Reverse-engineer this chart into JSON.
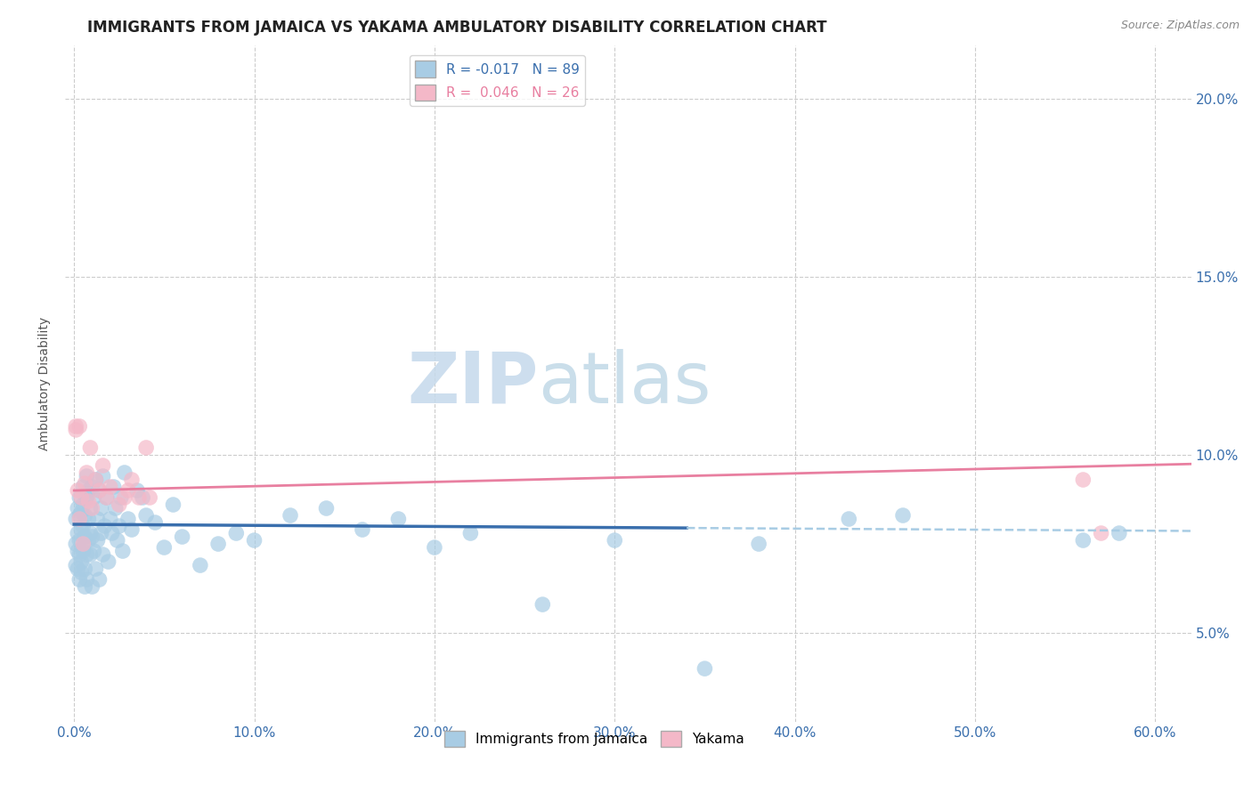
{
  "title": "IMMIGRANTS FROM JAMAICA VS YAKAMA AMBULATORY DISABILITY CORRELATION CHART",
  "source": "Source: ZipAtlas.com",
  "ylabel": "Ambulatory Disability",
  "xlim": [
    -0.005,
    0.62
  ],
  "ylim": [
    0.025,
    0.215
  ],
  "xticks": [
    0.0,
    0.1,
    0.2,
    0.3,
    0.4,
    0.5,
    0.6
  ],
  "yticks": [
    0.05,
    0.1,
    0.15,
    0.2
  ],
  "ytick_labels": [
    "5.0%",
    "10.0%",
    "15.0%",
    "20.0%"
  ],
  "xtick_labels": [
    "0.0%",
    "10.0%",
    "20.0%",
    "30.0%",
    "40.0%",
    "50.0%",
    "60.0%"
  ],
  "grid_color": "#cccccc",
  "background_color": "#ffffff",
  "legend_r1": "R = -0.017",
  "legend_n1": "N = 89",
  "legend_r2": "R =  0.046",
  "legend_n2": "N = 26",
  "blue_color": "#a8cce4",
  "pink_color": "#f4b8c8",
  "blue_line_color": "#3a6fad",
  "blue_dash_color": "#a8cce4",
  "pink_line_color": "#e87fa0",
  "blue_scatter": {
    "x": [
      0.001,
      0.001,
      0.001,
      0.002,
      0.002,
      0.002,
      0.002,
      0.003,
      0.003,
      0.003,
      0.003,
      0.003,
      0.004,
      0.004,
      0.004,
      0.004,
      0.005,
      0.005,
      0.005,
      0.005,
      0.005,
      0.006,
      0.006,
      0.006,
      0.006,
      0.007,
      0.007,
      0.007,
      0.007,
      0.008,
      0.008,
      0.008,
      0.009,
      0.009,
      0.009,
      0.01,
      0.01,
      0.01,
      0.011,
      0.011,
      0.012,
      0.012,
      0.013,
      0.013,
      0.014,
      0.014,
      0.015,
      0.015,
      0.016,
      0.016,
      0.017,
      0.018,
      0.019,
      0.02,
      0.021,
      0.022,
      0.023,
      0.024,
      0.025,
      0.026,
      0.027,
      0.028,
      0.03,
      0.032,
      0.035,
      0.038,
      0.04,
      0.045,
      0.05,
      0.055,
      0.06,
      0.07,
      0.08,
      0.09,
      0.1,
      0.12,
      0.14,
      0.16,
      0.18,
      0.2,
      0.22,
      0.26,
      0.3,
      0.35,
      0.38,
      0.43,
      0.46,
      0.56,
      0.58
    ],
    "y": [
      0.082,
      0.075,
      0.069,
      0.085,
      0.078,
      0.073,
      0.068,
      0.083,
      0.076,
      0.072,
      0.065,
      0.088,
      0.079,
      0.084,
      0.07,
      0.067,
      0.086,
      0.074,
      0.08,
      0.073,
      0.091,
      0.077,
      0.083,
      0.068,
      0.063,
      0.088,
      0.072,
      0.065,
      0.094,
      0.082,
      0.076,
      0.09,
      0.085,
      0.078,
      0.072,
      0.091,
      0.077,
      0.063,
      0.088,
      0.073,
      0.093,
      0.068,
      0.082,
      0.076,
      0.09,
      0.065,
      0.085,
      0.078,
      0.072,
      0.094,
      0.08,
      0.088,
      0.07,
      0.082,
      0.078,
      0.091,
      0.085,
      0.076,
      0.08,
      0.088,
      0.073,
      0.095,
      0.082,
      0.079,
      0.09,
      0.088,
      0.083,
      0.081,
      0.074,
      0.086,
      0.077,
      0.069,
      0.075,
      0.078,
      0.076,
      0.083,
      0.085,
      0.079,
      0.082,
      0.074,
      0.078,
      0.058,
      0.076,
      0.04,
      0.075,
      0.082,
      0.083,
      0.076,
      0.078
    ]
  },
  "pink_scatter": {
    "x": [
      0.001,
      0.001,
      0.002,
      0.003,
      0.003,
      0.004,
      0.005,
      0.006,
      0.007,
      0.008,
      0.009,
      0.01,
      0.012,
      0.014,
      0.016,
      0.018,
      0.02,
      0.025,
      0.028,
      0.03,
      0.032,
      0.036,
      0.04,
      0.042,
      0.56,
      0.57
    ],
    "y": [
      0.107,
      0.108,
      0.09,
      0.082,
      0.108,
      0.088,
      0.075,
      0.092,
      0.095,
      0.087,
      0.102,
      0.085,
      0.093,
      0.09,
      0.097,
      0.088,
      0.091,
      0.086,
      0.088,
      0.09,
      0.093,
      0.088,
      0.102,
      0.088,
      0.093,
      0.078
    ]
  },
  "blue_trendline": {
    "x_solid_start": 0.0,
    "x_solid_end": 0.34,
    "x_dash_start": 0.34,
    "x_dash_end": 0.62,
    "slope": -0.003,
    "intercept": 0.0805
  },
  "pink_trendline": {
    "x_start": 0.0,
    "x_end": 0.62,
    "slope": 0.012,
    "intercept": 0.09
  },
  "title_fontsize": 12,
  "tick_fontsize": 11,
  "axis_label_fontsize": 10,
  "legend_fontsize": 11
}
